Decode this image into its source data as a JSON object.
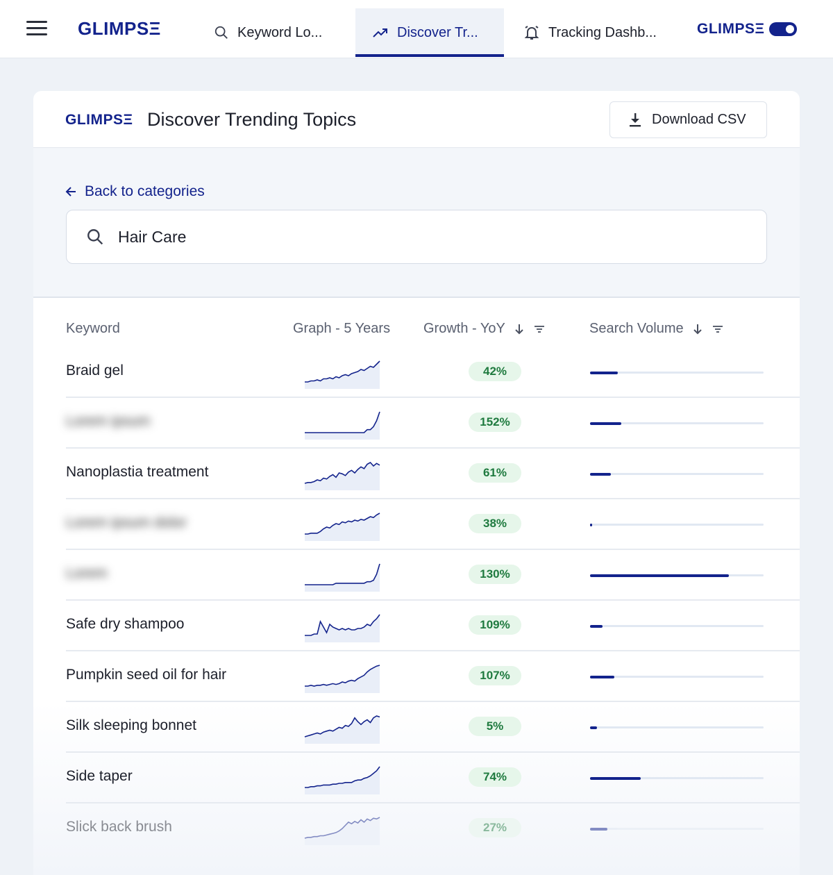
{
  "nav": {
    "logo": "GLIMPSΞ",
    "tabs": [
      {
        "label": "Keyword Lo...",
        "icon": "search-icon"
      },
      {
        "label": "Discover Tr...",
        "icon": "trending-icon",
        "active": true
      },
      {
        "label": "Tracking Dashb...",
        "icon": "bell-icon"
      }
    ],
    "right_logo": "GLIMPSΞ",
    "toggle_on": true
  },
  "card": {
    "logo": "GLIMPSΞ",
    "title": "Discover Trending Topics",
    "download_label": "Download CSV"
  },
  "back_link": "Back to categories",
  "search": {
    "value": "Hair Care"
  },
  "table": {
    "headers": {
      "keyword": "Keyword",
      "graph": "Graph - 5 Years",
      "growth": "Growth - YoY",
      "volume": "Search Volume"
    },
    "rows": [
      {
        "keyword": "Braid gel",
        "blurred": false,
        "growth": "42%",
        "volume_fraction": 0.16,
        "trend": [
          2,
          2,
          3,
          3,
          4,
          3,
          5,
          5,
          6,
          5,
          7,
          6,
          8,
          9,
          8,
          10,
          11,
          12,
          14,
          13,
          15,
          17,
          16,
          19,
          22
        ]
      },
      {
        "keyword": "blurred",
        "blurred": true,
        "growth": "152%",
        "volume_fraction": 0.18,
        "trend": [
          2,
          2,
          2,
          2,
          2,
          2,
          2,
          2,
          2,
          2,
          2,
          2,
          2,
          2,
          2,
          2,
          2,
          2,
          2,
          2,
          3,
          3,
          4,
          6,
          9
        ]
      },
      {
        "keyword": "Nanoplastia treatment",
        "blurred": false,
        "growth": "61%",
        "volume_fraction": 0.12,
        "trend": [
          2,
          3,
          3,
          4,
          6,
          5,
          8,
          7,
          10,
          12,
          9,
          14,
          13,
          11,
          15,
          17,
          14,
          18,
          21,
          19,
          24,
          26,
          22,
          25,
          23
        ]
      },
      {
        "keyword": "blurred",
        "blurred": true,
        "growth": "38%",
        "volume_fraction": 0.01,
        "trend": [
          2,
          2,
          3,
          3,
          3,
          5,
          8,
          10,
          9,
          12,
          14,
          13,
          16,
          15,
          17,
          16,
          18,
          17,
          19,
          18,
          20,
          22,
          21,
          24,
          26
        ]
      },
      {
        "keyword": "blurred",
        "blurred": true,
        "growth": "130%",
        "volume_fraction": 0.8,
        "trend": [
          2,
          2,
          2,
          2,
          2,
          2,
          2,
          2,
          2,
          2,
          3,
          3,
          3,
          3,
          3,
          3,
          3,
          3,
          3,
          3,
          4,
          4,
          5,
          9,
          16
        ]
      },
      {
        "keyword": "Safe dry shampoo",
        "blurred": false,
        "growth": "109%",
        "volume_fraction": 0.07,
        "trend": [
          2,
          2,
          2,
          3,
          3,
          12,
          8,
          4,
          10,
          8,
          7,
          6,
          7,
          6,
          7,
          6,
          6,
          7,
          7,
          8,
          10,
          9,
          12,
          14,
          17
        ]
      },
      {
        "keyword": "Pumpkin seed oil for hair",
        "blurred": false,
        "growth": "107%",
        "volume_fraction": 0.14,
        "trend": [
          2,
          2,
          3,
          2,
          3,
          3,
          4,
          3,
          4,
          5,
          4,
          5,
          7,
          6,
          8,
          9,
          8,
          11,
          13,
          15,
          19,
          22,
          24,
          26,
          27
        ]
      },
      {
        "keyword": "Silk sleeping bonnet",
        "blurred": false,
        "growth": "5%",
        "volume_fraction": 0.04,
        "trend": [
          2,
          3,
          4,
          5,
          6,
          5,
          7,
          8,
          9,
          8,
          10,
          12,
          11,
          14,
          13,
          16,
          22,
          18,
          15,
          18,
          20,
          17,
          22,
          24,
          23
        ]
      },
      {
        "keyword": "Side taper",
        "blurred": false,
        "growth": "74%",
        "volume_fraction": 0.29,
        "trend": [
          2,
          2,
          3,
          3,
          4,
          4,
          5,
          5,
          5,
          6,
          6,
          7,
          7,
          8,
          8,
          8,
          10,
          11,
          11,
          13,
          14,
          16,
          19,
          22,
          27
        ]
      },
      {
        "keyword": "Slick back brush",
        "blurred": false,
        "growth": "27%",
        "volume_fraction": 0.1,
        "trend": [
          2,
          3,
          3,
          4,
          4,
          5,
          5,
          6,
          7,
          8,
          9,
          11,
          14,
          18,
          22,
          20,
          23,
          21,
          25,
          22,
          26,
          24,
          27,
          26,
          28
        ]
      }
    ]
  },
  "colors": {
    "brand": "#13238c",
    "growth_bg": "#e6f6ea",
    "growth_text": "#1f7a3f"
  }
}
